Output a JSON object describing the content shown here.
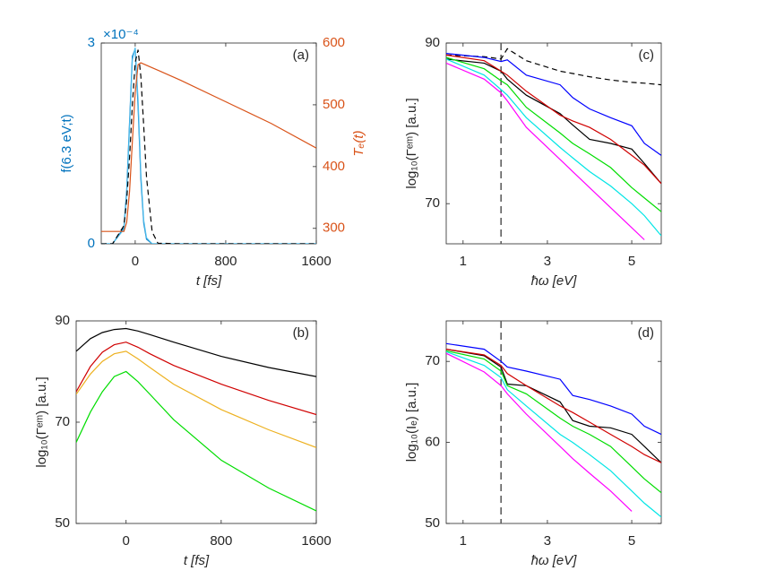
{
  "chart_data": [
    {
      "type": "line",
      "label": "(a)",
      "x_label": "t [fs]",
      "y_label": "f(6.3 eV;t)",
      "y2_label": "Tₑ(t)",
      "y_exponent": "×10⁻⁴",
      "ycolor": "#0072bd",
      "y2color": "#d95319",
      "xlim": [
        -300,
        1600
      ],
      "xticks": [
        0,
        800,
        1600
      ],
      "ylim": [
        0,
        3
      ],
      "yticks": [
        0,
        3
      ],
      "y2lim": [
        275,
        600
      ],
      "y2ticks": [
        300,
        400,
        500,
        600
      ],
      "x": [
        -300,
        -200,
        -100,
        -75,
        -50,
        -25,
        0,
        25,
        50,
        75,
        100,
        150,
        200,
        400,
        800,
        1200,
        1600
      ],
      "series": [
        {
          "color": "#0072bd",
          "values": [
            0,
            0,
            0.24,
            0.8,
            1.82,
            2.8,
            2.91,
            2.05,
            0.97,
            0.31,
            0.07,
            0,
            0,
            0,
            0,
            0,
            0
          ]
        },
        {
          "color": "#4dbeee",
          "values": [
            0,
            0,
            0.22,
            0.75,
            1.75,
            2.75,
            2.93,
            2.15,
            1.05,
            0.35,
            0.09,
            0,
            0,
            0,
            0,
            0,
            0
          ]
        },
        {
          "color": "#000000",
          "style": "dashed",
          "values": [
            0,
            0,
            0.27,
            0.65,
            1.29,
            2.07,
            2.71,
            2.9,
            2.5,
            1.76,
            1.0,
            0.18,
            0.01,
            0,
            0,
            0,
            0
          ]
        },
        {
          "color": "#d95319",
          "axis": "y2",
          "values": [
            295,
            295,
            295,
            310,
            360,
            440,
            520,
            565,
            568,
            566,
            564,
            560,
            556,
            540,
            505,
            470,
            430
          ]
        }
      ]
    },
    {
      "type": "line",
      "label": "(b)",
      "x_label": "t [fs]",
      "y_label": "log₁₀(Γᵉᵐ) [a.u.]",
      "xlim": [
        -420,
        1600
      ],
      "xticks": [
        0,
        800,
        1600
      ],
      "ylim": [
        50,
        90
      ],
      "yticks": [
        50,
        70,
        90
      ],
      "x": [
        -420,
        -300,
        -200,
        -100,
        0,
        100,
        200,
        400,
        800,
        1200,
        1600
      ],
      "series": [
        {
          "color": "#000000",
          "values": [
            84,
            86.5,
            87.7,
            88.3,
            88.5,
            88.0,
            87.3,
            85.8,
            83.0,
            80.8,
            79.0
          ]
        },
        {
          "color": "#d00000",
          "values": [
            76,
            81,
            83.8,
            85.3,
            85.8,
            84.8,
            83.5,
            81.2,
            77.5,
            74.3,
            71.5
          ]
        },
        {
          "color": "#edb120",
          "values": [
            75.5,
            79.5,
            82,
            83.5,
            84.0,
            82.5,
            80.8,
            77.5,
            72.5,
            68.5,
            65
          ]
        },
        {
          "color": "#00dd00",
          "values": [
            66,
            72,
            76,
            79,
            80,
            78,
            75.5,
            70.5,
            62.5,
            57,
            52.5
          ]
        }
      ]
    },
    {
      "type": "line",
      "label": "(c)",
      "x_label": "ħω [eV]",
      "y_label": "log₁₀(Γᵉᵐ) [a.u.]",
      "xlim": [
        0.6,
        5.7
      ],
      "xticks": [
        1,
        3,
        5
      ],
      "ylim": [
        65,
        90
      ],
      "yticks": [
        70,
        90
      ],
      "vline": 1.9,
      "x": [
        0.6,
        1.5,
        1.9,
        2.05,
        2.5,
        3.3,
        3.6,
        4.0,
        4.5,
        5.0,
        5.3,
        5.7
      ],
      "series": [
        {
          "color": "#000000",
          "style": "dashed",
          "values": [
            88.5,
            88.3,
            88.0,
            89.3,
            87.8,
            86.5,
            86.2,
            85.8,
            85.4,
            85.1,
            85.0,
            84.8
          ]
        },
        {
          "color": "#0000ff",
          "values": [
            88.7,
            88.2,
            87.7,
            87.9,
            86,
            84.8,
            83.2,
            81.8,
            80.7,
            79.7,
            77.5,
            76
          ]
        },
        {
          "color": "#000000",
          "values": [
            88,
            87.5,
            86.5,
            85.5,
            83.5,
            81.2,
            79.8,
            78,
            77.5,
            76.8,
            75,
            72.5
          ]
        },
        {
          "color": "#d00000",
          "values": [
            88.5,
            87.8,
            86.5,
            86,
            84,
            81,
            80.3,
            79.5,
            78,
            76,
            74.8,
            72.5
          ]
        },
        {
          "color": "#00dd00",
          "values": [
            88.2,
            86.8,
            85.3,
            84.8,
            82,
            78.8,
            77.5,
            76.2,
            74.5,
            72,
            70.7,
            69
          ]
        },
        {
          "color": "#00e5e5",
          "values": [
            88,
            86,
            84.2,
            83.5,
            80.7,
            77,
            75.7,
            74,
            72.2,
            70,
            68.5,
            66
          ]
        },
        {
          "color": "#ff00ff",
          "values": [
            87.5,
            85.5,
            83.8,
            82.8,
            79.5,
            75.5,
            74,
            72,
            69.5,
            67,
            65.5,
            null
          ]
        }
      ]
    },
    {
      "type": "line",
      "label": "(d)",
      "x_label": "ħω [eV]",
      "y_label": "log₁₀(Iₑ) [a.u.]",
      "xlim": [
        0.6,
        5.7
      ],
      "xticks": [
        1,
        3,
        5
      ],
      "ylim": [
        50,
        75
      ],
      "yticks": [
        50,
        60,
        70
      ],
      "vline": 1.9,
      "x": [
        0.6,
        1.5,
        1.9,
        2.05,
        2.5,
        3.3,
        3.6,
        4.0,
        4.5,
        5.0,
        5.3,
        5.7
      ],
      "series": [
        {
          "color": "#0000ff",
          "values": [
            72.2,
            71.5,
            70,
            69.3,
            68.8,
            67.8,
            65.8,
            65.3,
            64.5,
            63.5,
            62,
            61
          ]
        },
        {
          "color": "#000000",
          "values": [
            71.5,
            70.7,
            69.3,
            67.2,
            67,
            65,
            62.7,
            62,
            61.8,
            61,
            59.5,
            57.5
          ]
        },
        {
          "color": "#d00000",
          "values": [
            71.5,
            70.8,
            69.5,
            68.5,
            67,
            64.5,
            63.7,
            62.5,
            61,
            59.5,
            58.5,
            57.5
          ]
        },
        {
          "color": "#00dd00",
          "values": [
            71.3,
            70.3,
            68.8,
            67,
            66,
            63,
            62,
            61,
            59.5,
            57,
            55.5,
            53.8
          ]
        },
        {
          "color": "#00e5e5",
          "values": [
            71.2,
            69.5,
            68,
            66.5,
            64.5,
            61,
            60,
            58.5,
            56.5,
            54,
            52.5,
            50.8
          ]
        },
        {
          "color": "#ff00ff",
          "values": [
            71,
            68.7,
            67,
            66,
            63.5,
            59.5,
            58,
            56.2,
            54,
            51.5,
            null,
            null
          ]
        }
      ]
    }
  ]
}
